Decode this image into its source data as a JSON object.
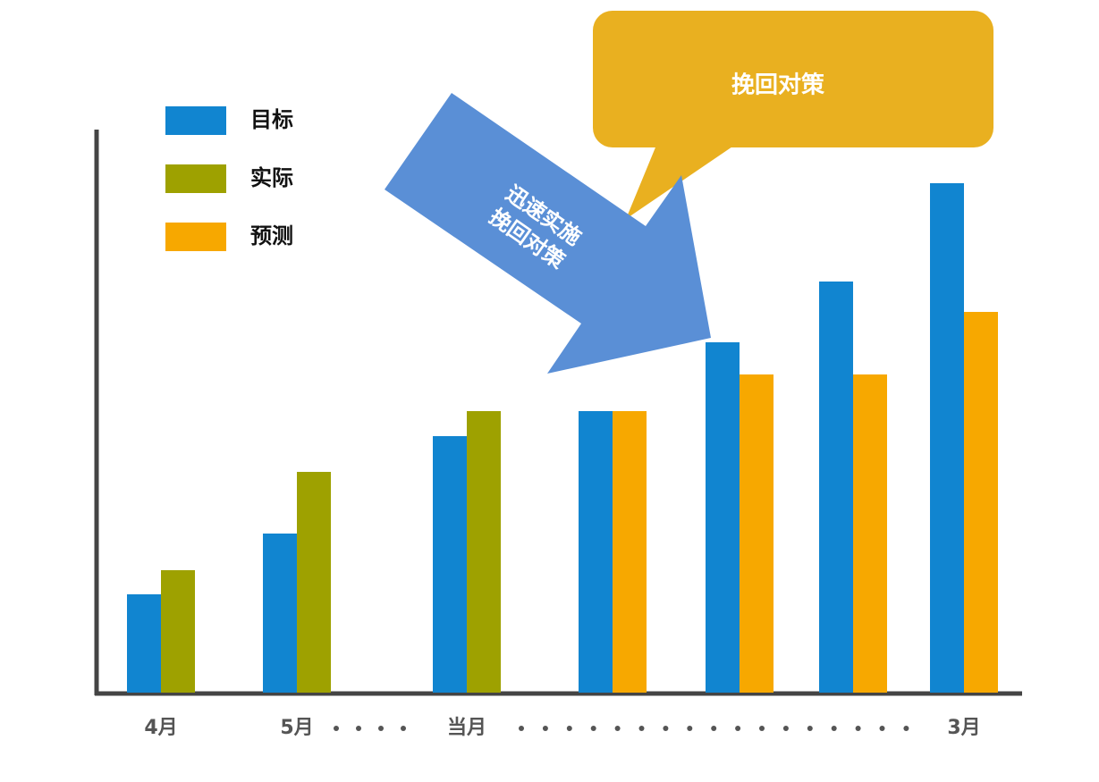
{
  "chart_data": {
    "type": "bar",
    "categories": [
      "4月",
      "5月",
      "当月",
      null,
      null,
      null,
      "3月"
    ],
    "series": [
      {
        "name": "目标",
        "color": "#1185d0",
        "values": [
          110,
          178,
          287,
          315,
          392,
          460,
          570
        ]
      },
      {
        "name": "实际",
        "color": "#9ea100",
        "values": [
          137,
          247,
          315,
          null,
          null,
          null,
          null
        ]
      },
      {
        "name": "预测",
        "color": "#f7a800",
        "values": [
          null,
          null,
          null,
          315,
          356,
          356,
          426
        ]
      }
    ],
    "ylim": [
      0,
      630
    ],
    "annotations": {
      "callout": "挽回对策",
      "arrow_text": [
        "迅速实施",
        "挽回对策"
      ]
    }
  }
}
